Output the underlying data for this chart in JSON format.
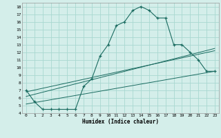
{
  "xlabel": "Humidex (Indice chaleur)",
  "xlim": [
    -0.5,
    23.5
  ],
  "ylim": [
    4,
    18.5
  ],
  "xticks": [
    0,
    1,
    2,
    3,
    4,
    5,
    6,
    7,
    8,
    9,
    10,
    11,
    12,
    13,
    14,
    15,
    16,
    17,
    18,
    19,
    20,
    21,
    22,
    23
  ],
  "yticks": [
    4,
    5,
    6,
    7,
    8,
    9,
    10,
    11,
    12,
    13,
    14,
    15,
    16,
    17,
    18
  ],
  "bg_color": "#d4eeea",
  "grid_color": "#a8d8d0",
  "line_color": "#1a6b60",
  "curve_x": [
    0,
    1,
    2,
    3,
    4,
    5,
    6,
    7,
    8,
    9,
    10,
    11,
    12,
    13,
    14,
    15,
    16,
    17,
    18,
    19,
    20,
    21,
    22,
    23
  ],
  "curve_y": [
    7.0,
    5.5,
    4.5,
    4.5,
    4.5,
    4.5,
    4.5,
    7.5,
    8.5,
    11.5,
    13.0,
    15.5,
    16.0,
    17.5,
    18.0,
    17.5,
    16.5,
    16.5,
    13.0,
    13.0,
    12.0,
    11.0,
    9.5,
    9.5
  ],
  "line1_x": [
    0,
    23
  ],
  "line1_y": [
    5.2,
    9.5
  ],
  "line2_x": [
    0,
    23
  ],
  "line2_y": [
    6.2,
    12.5
  ],
  "line3_x": [
    0,
    23
  ],
  "line3_y": [
    6.8,
    12.2
  ]
}
